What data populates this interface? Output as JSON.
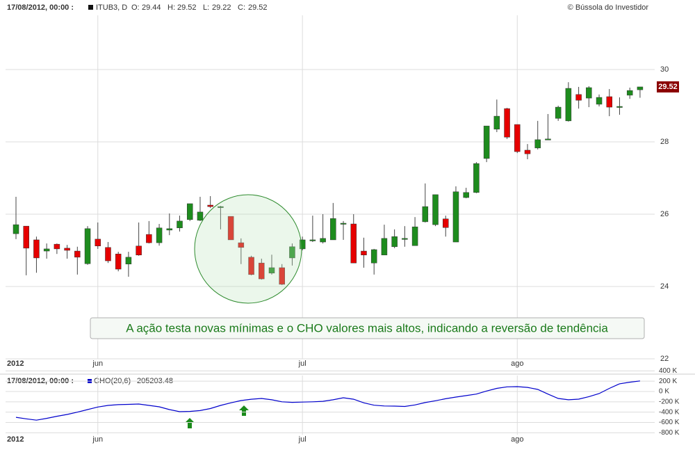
{
  "chart_data": [
    {
      "type": "candlestick",
      "datetime": "17/08/2012, 00:00 :",
      "symbol": "ITUB3, D",
      "ohlc_labels": [
        "O:",
        "H:",
        "L:",
        "C:"
      ],
      "credit": "© Bússola do Investidor",
      "annotation": "A ação testa novas mínimas e o CHO valores mais altos, indicando a reversão de tendência",
      "x_labels": [
        {
          "label": "2012",
          "index": 0
        },
        {
          "label": "jun",
          "index": 8
        },
        {
          "label": "jul",
          "index": 28
        },
        {
          "label": "ago",
          "index": 49
        }
      ],
      "up_color": "#1e8c1e",
      "down_color": "#e60000",
      "open": [
        25.46,
        25.67,
        25.29,
        24.98,
        25.17,
        25.06,
        24.98,
        24.63,
        25.31,
        25.08,
        24.9,
        24.62,
        25.12,
        25.44,
        25.21,
        25.56,
        25.62,
        25.85,
        25.83,
        26.25,
        26.19,
        25.94,
        25.21,
        24.81,
        24.65,
        24.37,
        24.52,
        24.79,
        25.04,
        25.27,
        25.23,
        25.29,
        25.73,
        25.73,
        24.98,
        24.65,
        24.87,
        25.1,
        25.31,
        25.13,
        25.79,
        25.71,
        25.87,
        25.23,
        26.46,
        26.6,
        27.54,
        28.35,
        28.92,
        28.48,
        27.77,
        27.83,
        28.06,
        28.65,
        28.58,
        29.31,
        29.21,
        29.04,
        29.25,
        28.96,
        29.29,
        29.44
      ],
      "high": [
        26.48,
        25.67,
        25.38,
        25.19,
        25.19,
        25.15,
        25.1,
        25.67,
        25.77,
        25.23,
        24.96,
        24.96,
        25.77,
        25.81,
        25.73,
        26.02,
        25.96,
        26.29,
        26.48,
        26.5,
        26.23,
        25.94,
        25.33,
        24.85,
        24.77,
        24.88,
        24.62,
        25.19,
        25.38,
        25.96,
        26.0,
        26.31,
        25.81,
        26.0,
        25.35,
        25.04,
        25.71,
        25.58,
        25.67,
        25.92,
        26.85,
        26.54,
        25.96,
        26.77,
        26.73,
        27.44,
        28.44,
        29.17,
        28.94,
        28.48,
        27.94,
        28.58,
        28.77,
        29.0,
        29.65,
        29.52,
        29.54,
        29.31,
        29.46,
        29.23,
        29.5,
        29.52
      ],
      "low": [
        25.31,
        24.31,
        24.38,
        24.77,
        24.9,
        24.77,
        24.33,
        24.6,
        25.04,
        24.65,
        24.42,
        24.27,
        24.85,
        25.19,
        25.13,
        25.42,
        25.52,
        25.81,
        25.81,
        26.17,
        25.58,
        25.29,
        24.62,
        24.31,
        24.19,
        24.33,
        24.04,
        24.58,
        25.0,
        25.23,
        25.19,
        25.29,
        25.29,
        24.65,
        24.52,
        24.33,
        24.87,
        25.06,
        25.1,
        25.13,
        25.77,
        25.67,
        25.38,
        25.23,
        26.44,
        26.58,
        27.44,
        28.27,
        28.08,
        27.69,
        27.52,
        27.79,
        28.06,
        28.58,
        28.56,
        28.92,
        28.96,
        28.98,
        28.71,
        28.75,
        29.19,
        29.22
      ],
      "close": [
        25.71,
        25.06,
        24.79,
        25.04,
        25.04,
        25.0,
        24.81,
        25.6,
        25.12,
        24.71,
        24.48,
        24.81,
        24.87,
        25.21,
        25.62,
        25.6,
        25.81,
        26.29,
        26.06,
        26.21,
        26.21,
        25.29,
        25.08,
        24.33,
        24.21,
        24.52,
        24.06,
        25.1,
        25.29,
        25.29,
        25.33,
        25.88,
        25.75,
        24.65,
        24.87,
        25.02,
        25.33,
        25.38,
        25.33,
        25.65,
        26.21,
        26.54,
        25.63,
        26.62,
        26.6,
        27.4,
        28.44,
        28.71,
        28.13,
        27.73,
        27.67,
        28.06,
        28.08,
        28.96,
        29.48,
        29.15,
        29.5,
        29.23,
        28.96,
        28.98,
        29.42,
        29.52
      ],
      "ylim": [
        22,
        31.5
      ],
      "yticks": [
        22,
        24,
        26,
        28,
        30
      ],
      "grid": true
    },
    {
      "type": "line",
      "datetime": "17/08/2012, 00:00 :",
      "x_labels": [
        {
          "label": "2012",
          "index": 0
        },
        {
          "label": "jun",
          "index": 8
        },
        {
          "label": "jul",
          "index": 28
        },
        {
          "label": "ago",
          "index": 49
        }
      ],
      "series": [
        {
          "name": "CHO(20,6)",
          "color": "#0000cc",
          "values": [
            -500000,
            -530000,
            -555000,
            -520000,
            -480000,
            -445000,
            -400000,
            -350000,
            -300000,
            -270000,
            -255000,
            -250000,
            -243000,
            -270000,
            -297000,
            -350000,
            -391000,
            -385000,
            -370000,
            -330000,
            -270000,
            -220000,
            -175000,
            -150000,
            -135000,
            -160000,
            -200000,
            -210000,
            -205000,
            -200000,
            -190000,
            -160000,
            -121000,
            -150000,
            -220000,
            -265000,
            -280000,
            -283000,
            -290000,
            -260000,
            -215000,
            -180000,
            -140000,
            -108000,
            -80000,
            -50000,
            10000,
            60000,
            90000,
            94000,
            80000,
            40000,
            -50000,
            -135000,
            -160000,
            -148000,
            -100000,
            -40000,
            60000,
            150000,
            180000,
            205203.48
          ]
        }
      ],
      "ylim": [
        -840000,
        480000
      ],
      "yticks": [
        {
          "value": 400000,
          "label": "400 K"
        },
        {
          "value": 200000,
          "label": "200 K"
        },
        {
          "value": 0,
          "label": "0 K"
        },
        {
          "value": -200000,
          "label": "-200 K"
        },
        {
          "value": -400000,
          "label": "-400 K"
        },
        {
          "value": -600000,
          "label": "-600 K"
        },
        {
          "value": -800000,
          "label": "-800 K"
        }
      ],
      "grid": true
    }
  ]
}
